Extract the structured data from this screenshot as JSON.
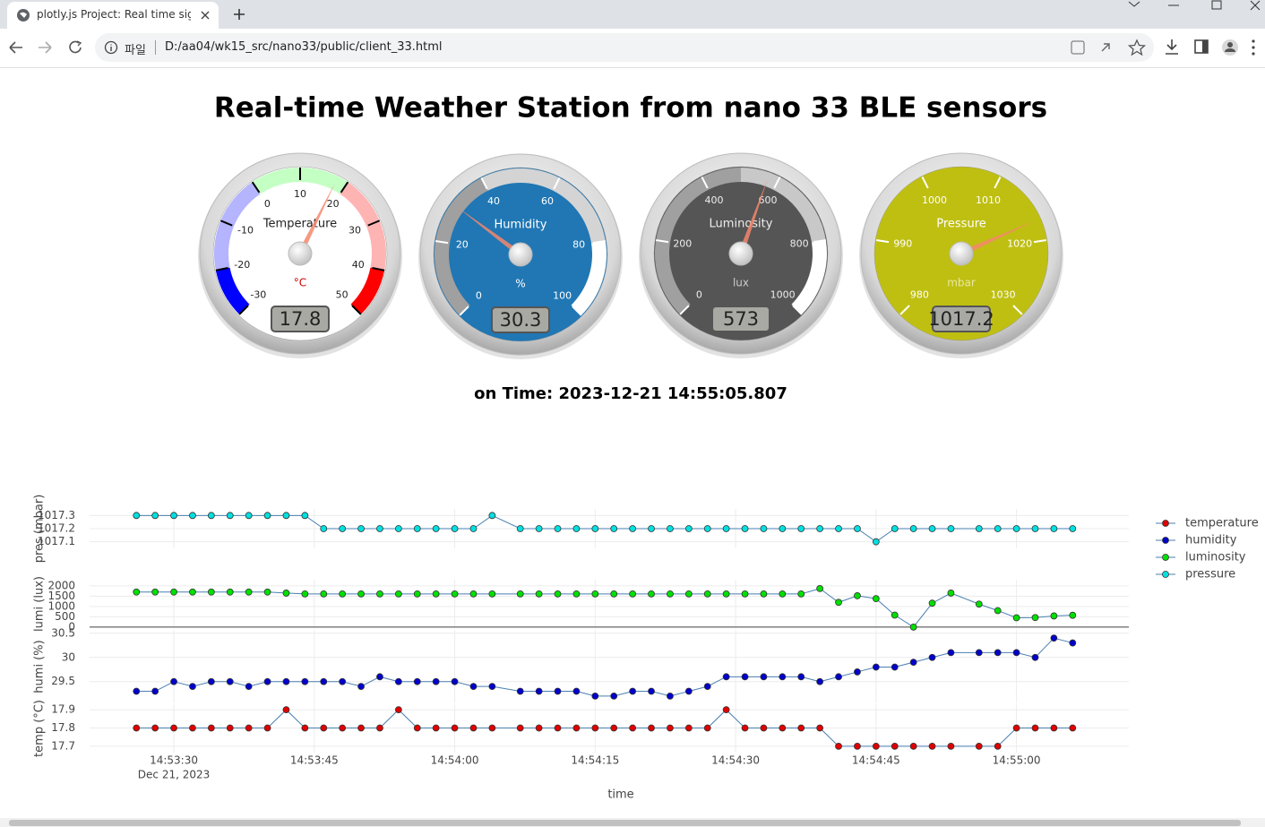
{
  "browser": {
    "tab_title": "plotly.js Project: Real time signa",
    "url_scheme": "파일",
    "url": "D:/aa04/wk15_src/nano33/public/client_33.html"
  },
  "page": {
    "title": "Real-time Weather Station from nano 33 BLE sensors",
    "time_text": "on Time: 2023-12-21 14:55:05.807"
  },
  "gauges": [
    {
      "title": "Temperature",
      "unit": "°C",
      "value": 17.8,
      "range": [
        -30,
        50
      ],
      "ticks": [
        -30,
        -20,
        -10,
        0,
        10,
        20,
        30,
        40,
        50
      ],
      "face": "#ffffff",
      "text_color": "#222222",
      "unit_color": "#d00000",
      "tick_color": "#000000",
      "highlights": [
        {
          "from": -30,
          "to": -20,
          "color": "#0000ff"
        },
        {
          "from": -20,
          "to": 0,
          "color": "#b4b4ff"
        },
        {
          "from": 0,
          "to": 20,
          "color": "#c4ffc4"
        },
        {
          "from": 20,
          "to": 40,
          "color": "#ffb4b4"
        },
        {
          "from": 40,
          "to": 50,
          "color": "#ff0000"
        }
      ]
    },
    {
      "title": "Humidity",
      "unit": "%",
      "value": 30.3,
      "range": [
        0,
        100
      ],
      "ticks": [
        0,
        20,
        40,
        60,
        80,
        100
      ],
      "face": "#2077b4",
      "text_color": "#ffffff",
      "unit_color": "#ffffff",
      "tick_color": "#ffffff",
      "highlights": [
        {
          "from": 0,
          "to": 40,
          "color": "#a0a0a0"
        },
        {
          "from": 40,
          "to": 80,
          "color": "#d4d4d4"
        },
        {
          "from": 80,
          "to": 100,
          "color": "#ffffff"
        }
      ]
    },
    {
      "title": "Luminosity",
      "unit": "lux",
      "value": 573,
      "range": [
        0,
        1000
      ],
      "ticks": [
        0,
        200,
        400,
        600,
        800,
        1000
      ],
      "face": "#555555",
      "text_color": "#eeeeee",
      "unit_color": "#cccccc",
      "tick_color": "#ffffff",
      "highlights": [
        {
          "from": 0,
          "to": 500,
          "color": "#a0a0a0"
        },
        {
          "from": 500,
          "to": 800,
          "color": "#c8c8c8"
        },
        {
          "from": 800,
          "to": 1000,
          "color": "#ffffff"
        }
      ]
    },
    {
      "title": "Pressure",
      "unit": "mbar",
      "value": 1017.2,
      "range": [
        980,
        1030
      ],
      "ticks": [
        980,
        990,
        1000,
        1010,
        1020,
        1030
      ],
      "face": "#bfbf12",
      "text_color": "#ffffff",
      "unit_color": "#e8e8a0",
      "tick_color": "#ffffff",
      "highlights": []
    }
  ],
  "chart_data": {
    "type": "line",
    "xlabel": "time",
    "x": [
      "2023-12-21 14:53:26",
      "2023-12-21 14:53:28",
      "2023-12-21 14:53:30",
      "2023-12-21 14:53:32",
      "2023-12-21 14:53:34",
      "2023-12-21 14:53:36",
      "2023-12-21 14:53:38",
      "2023-12-21 14:53:40",
      "2023-12-21 14:53:42",
      "2023-12-21 14:53:44",
      "2023-12-21 14:53:46",
      "2023-12-21 14:53:48",
      "2023-12-21 14:53:50",
      "2023-12-21 14:53:52",
      "2023-12-21 14:53:54",
      "2023-12-21 14:53:56",
      "2023-12-21 14:53:58",
      "2023-12-21 14:54:00",
      "2023-12-21 14:54:02",
      "2023-12-21 14:54:04",
      "2023-12-21 14:54:07",
      "2023-12-21 14:54:09",
      "2023-12-21 14:54:11",
      "2023-12-21 14:54:13",
      "2023-12-21 14:54:15",
      "2023-12-21 14:54:17",
      "2023-12-21 14:54:19",
      "2023-12-21 14:54:21",
      "2023-12-21 14:54:23",
      "2023-12-21 14:54:25",
      "2023-12-21 14:54:27",
      "2023-12-21 14:54:29",
      "2023-12-21 14:54:31",
      "2023-12-21 14:54:33",
      "2023-12-21 14:54:35",
      "2023-12-21 14:54:37",
      "2023-12-21 14:54:39",
      "2023-12-21 14:54:41",
      "2023-12-21 14:54:43",
      "2023-12-21 14:54:45",
      "2023-12-21 14:54:47",
      "2023-12-21 14:54:49",
      "2023-12-21 14:54:51",
      "2023-12-21 14:54:53",
      "2023-12-21 14:54:56",
      "2023-12-21 14:54:58",
      "2023-12-21 14:55:00",
      "2023-12-21 14:55:02",
      "2023-12-21 14:55:04",
      "2023-12-21 14:55:06"
    ],
    "xlim": [
      "2023-12-21 14:53:21",
      "2023-12-21 14:55:12"
    ],
    "xticks": [
      {
        "value": "2023-12-21 14:53:30",
        "label": "14:53:30"
      },
      {
        "value": "2023-12-21 14:53:45",
        "label": "14:53:45"
      },
      {
        "value": "2023-12-21 14:54:00",
        "label": "14:54:00"
      },
      {
        "value": "2023-12-21 14:54:15",
        "label": "14:54:15"
      },
      {
        "value": "2023-12-21 14:54:30",
        "label": "14:54:30"
      },
      {
        "value": "2023-12-21 14:54:45",
        "label": "14:54:45"
      },
      {
        "value": "2023-12-21 14:55:00",
        "label": "14:55:00"
      }
    ],
    "x_date_label": "Dec 21, 2023",
    "grid": true,
    "legend": "right",
    "line_color": "#4a7fb0",
    "series": [
      {
        "name": "temperature",
        "color": "#e00000",
        "ylabel": "temp (°C)",
        "ylim": [
          17.665,
          17.93
        ],
        "yticks": [
          17.7,
          17.8,
          17.9
        ],
        "values": [
          17.8,
          17.8,
          17.8,
          17.8,
          17.8,
          17.8,
          17.8,
          17.8,
          17.9,
          17.8,
          17.8,
          17.8,
          17.8,
          17.8,
          17.9,
          17.8,
          17.8,
          17.8,
          17.8,
          17.8,
          17.8,
          17.8,
          17.8,
          17.8,
          17.8,
          17.8,
          17.8,
          17.8,
          17.8,
          17.8,
          17.8,
          17.9,
          17.8,
          17.8,
          17.8,
          17.8,
          17.8,
          17.7,
          17.7,
          17.7,
          17.7,
          17.7,
          17.7,
          17.7,
          17.7,
          17.7,
          17.8,
          17.8,
          17.8,
          17.8
        ]
      },
      {
        "name": "humidity",
        "color": "#0000cc",
        "ylabel": "humi (%)",
        "ylim": [
          29.05,
          30.57
        ],
        "yticks": [
          29.5,
          30,
          30.5
        ],
        "values": [
          29.3,
          29.3,
          29.5,
          29.4,
          29.5,
          29.5,
          29.4,
          29.5,
          29.5,
          29.5,
          29.5,
          29.5,
          29.4,
          29.6,
          29.5,
          29.5,
          29.5,
          29.5,
          29.4,
          29.4,
          29.3,
          29.3,
          29.3,
          29.3,
          29.2,
          29.2,
          29.3,
          29.3,
          29.2,
          29.3,
          29.4,
          29.6,
          29.6,
          29.6,
          29.6,
          29.6,
          29.5,
          29.6,
          29.7,
          29.8,
          29.8,
          29.9,
          30.0,
          30.1,
          30.1,
          30.1,
          30.1,
          30.0,
          30.4,
          30.3
        ]
      },
      {
        "name": "luminosity",
        "color": "#00e000",
        "ylabel": "lumi (lux)",
        "ylim": [
          -50,
          2300
        ],
        "yticks": [
          0,
          500,
          1000,
          1500,
          2000
        ],
        "zeroline": true,
        "values": [
          1700,
          1700,
          1700,
          1700,
          1700,
          1700,
          1700,
          1700,
          1650,
          1610,
          1610,
          1610,
          1610,
          1610,
          1610,
          1610,
          1610,
          1610,
          1610,
          1610,
          1610,
          1610,
          1610,
          1610,
          1610,
          1610,
          1610,
          1610,
          1610,
          1610,
          1610,
          1610,
          1610,
          1610,
          1610,
          1610,
          1870,
          1200,
          1520,
          1380,
          580,
          0,
          1160,
          1650,
          1115,
          800,
          450,
          460,
          540,
          573
        ]
      },
      {
        "name": "pressure",
        "color": "#00e0e0",
        "ylabel": "pres (mbar)",
        "ylim": [
          1017.05,
          1017.35
        ],
        "yticks": [
          1017.1,
          1017.2,
          1017.3
        ],
        "values": [
          1017.3,
          1017.3,
          1017.3,
          1017.3,
          1017.3,
          1017.3,
          1017.3,
          1017.3,
          1017.3,
          1017.3,
          1017.2,
          1017.2,
          1017.2,
          1017.2,
          1017.2,
          1017.2,
          1017.2,
          1017.2,
          1017.2,
          1017.3,
          1017.2,
          1017.2,
          1017.2,
          1017.2,
          1017.2,
          1017.2,
          1017.2,
          1017.2,
          1017.2,
          1017.2,
          1017.2,
          1017.2,
          1017.2,
          1017.2,
          1017.2,
          1017.2,
          1017.2,
          1017.2,
          1017.2,
          1017.1,
          1017.2,
          1017.2,
          1017.2,
          1017.2,
          1017.2,
          1017.2,
          1017.2,
          1017.2,
          1017.2,
          1017.2
        ]
      }
    ]
  }
}
